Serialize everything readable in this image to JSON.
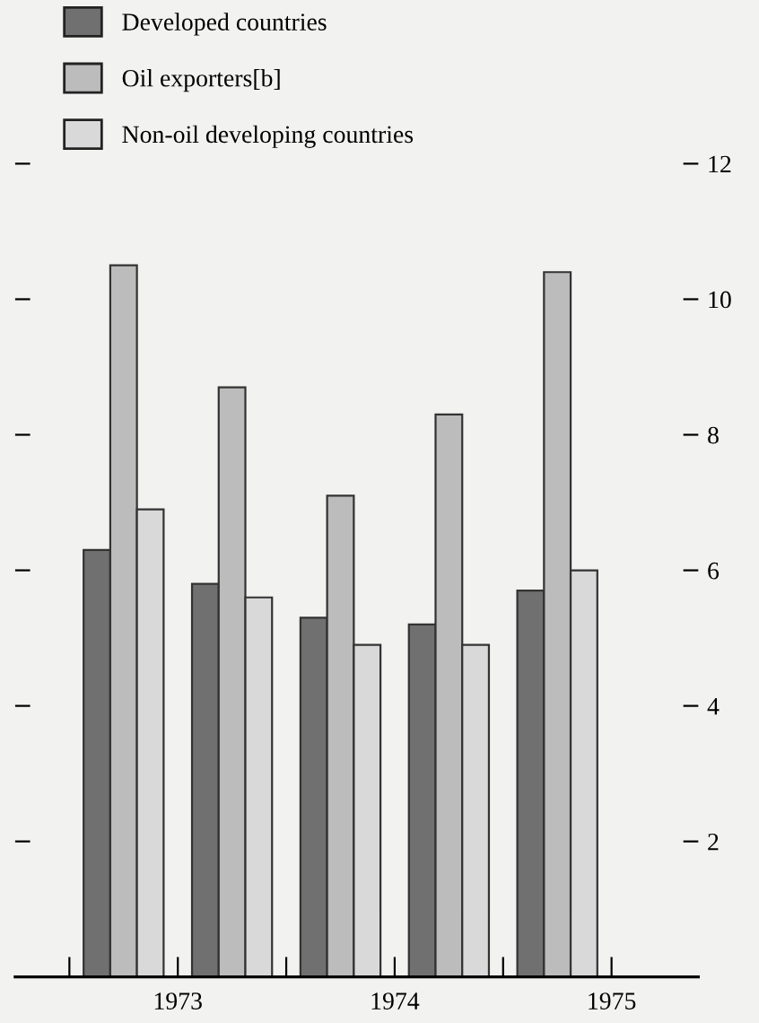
{
  "chart_data": {
    "type": "bar",
    "x": [
      1972.75,
      1973.25,
      1973.75,
      1974.25,
      1974.75
    ],
    "series": [
      {
        "name": "Developed countries",
        "color": "#707070",
        "values": [
          6.3,
          5.8,
          5.3,
          5.2,
          5.7
        ]
      },
      {
        "name": "Oil exporters[b]",
        "color": "#bcbcbc",
        "values": [
          10.5,
          8.7,
          7.1,
          8.3,
          10.4
        ]
      },
      {
        "name": "Non-oil developing countries",
        "color": "#d9d9d9",
        "values": [
          6.9,
          5.6,
          4.9,
          4.9,
          6.0
        ]
      }
    ],
    "xlim": [
      1972.25,
      1975.4
    ],
    "xticks": [
      {
        "value": 1972.5,
        "label": null
      },
      1973,
      {
        "value": 1973.5,
        "label": null
      },
      1974,
      {
        "value": 1974.5,
        "label": null
      },
      1975
    ],
    "ylim": [
      0,
      12
    ],
    "yticks": [
      2,
      4,
      6,
      8,
      10,
      12
    ],
    "grid": false,
    "legend": "top left"
  }
}
